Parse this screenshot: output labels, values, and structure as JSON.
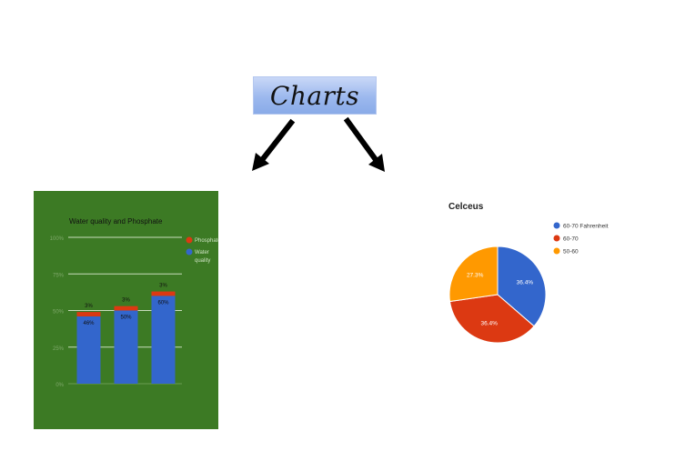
{
  "header": {
    "title": "Charts"
  },
  "colors": {
    "bar_bg": "#3c7a24",
    "phosphate": "#dc3912",
    "water": "#3366cc",
    "pie_blue": "#3366cc",
    "pie_red": "#dc3912",
    "pie_orange": "#ff9900"
  },
  "chart_data": [
    {
      "type": "bar",
      "title": "Water quality and Phosphate",
      "yticks": [
        "0%",
        "25%",
        "50%",
        "75%",
        "100%"
      ],
      "ylim": [
        0,
        100
      ],
      "stacked": true,
      "categories": [
        "",
        "",
        ""
      ],
      "series": [
        {
          "name": "Water quality",
          "values": [
            46,
            50,
            60
          ]
        },
        {
          "name": "Phosphate",
          "values": [
            3,
            3,
            3
          ]
        }
      ],
      "data_labels": {
        "water": [
          "46%",
          "50%",
          "60%"
        ],
        "phosphate": [
          "3%",
          "3%",
          "3%"
        ]
      },
      "legend": {
        "position": "right",
        "entries": [
          "Phosphate",
          "Water quality"
        ]
      },
      "grid": true
    },
    {
      "type": "pie",
      "title": "Celceus",
      "labels": [
        "60-70 Fahrenheit",
        "60-70",
        "50-60"
      ],
      "values": [
        36.4,
        36.4,
        27.3
      ],
      "slice_labels": [
        "36.4%",
        "36.4%",
        "27.3%"
      ],
      "legend": {
        "position": "right"
      }
    }
  ]
}
